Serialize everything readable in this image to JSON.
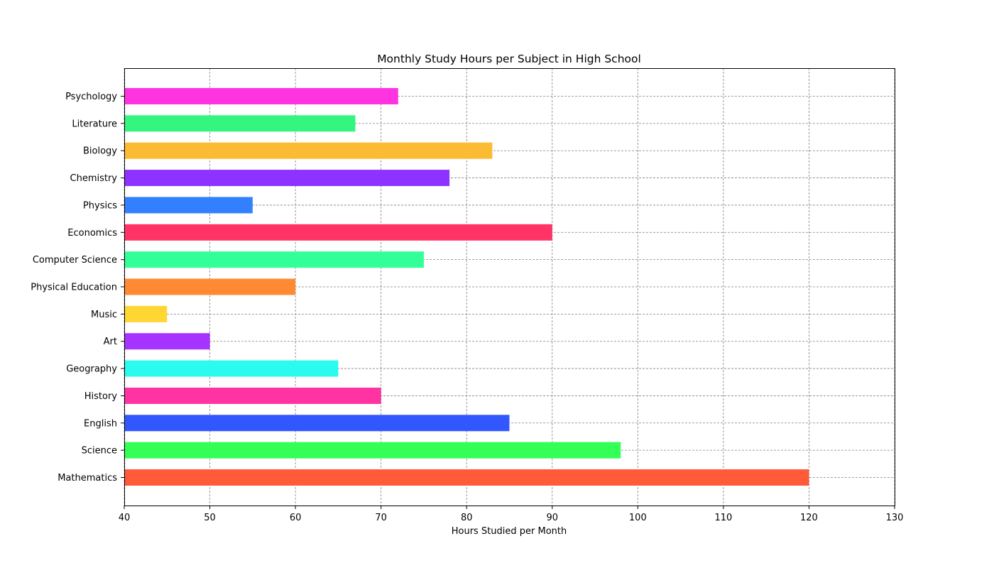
{
  "chart_data": {
    "type": "bar",
    "orientation": "horizontal",
    "title": "Monthly Study Hours per Subject in High School",
    "xlabel": "Hours Studied per Month",
    "ylabel": "",
    "xlim": [
      40,
      130
    ],
    "xticks": [
      40,
      50,
      60,
      70,
      80,
      90,
      100,
      110,
      120,
      130
    ],
    "grid": true,
    "categories": [
      "Mathematics",
      "Science",
      "English",
      "History",
      "Geography",
      "Art",
      "Music",
      "Physical Education",
      "Computer Science",
      "Economics",
      "Physics",
      "Chemistry",
      "Biology",
      "Literature",
      "Psychology"
    ],
    "values": [
      120,
      98,
      85,
      70,
      65,
      50,
      45,
      60,
      75,
      90,
      55,
      78,
      83,
      67,
      72
    ],
    "colors": [
      "#ff5a3a",
      "#33ff57",
      "#3357ff",
      "#ff33a1",
      "#2bfbee",
      "#a633ff",
      "#ffd633",
      "#ff8a33",
      "#33ff99",
      "#ff3366",
      "#3380ff",
      "#8c33ff",
      "#fbbc33",
      "#33f580",
      "#ff33e0"
    ]
  }
}
